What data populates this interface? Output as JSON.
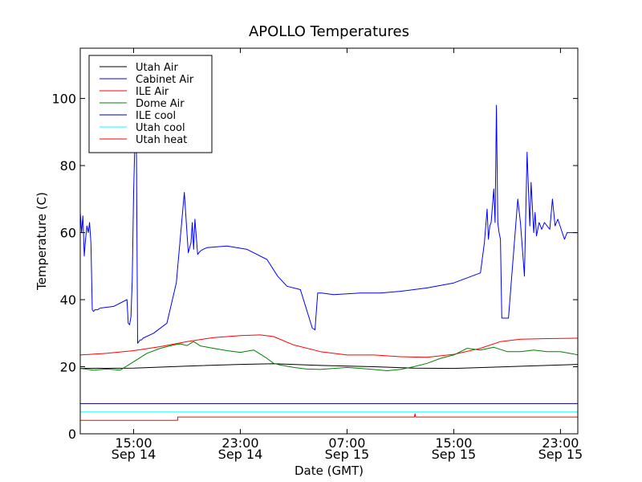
{
  "chart_data": {
    "type": "line",
    "title": "APOLLO Temperatures",
    "xlabel": "Date (GMT)",
    "ylabel": "Temperature (C)",
    "x_unit": "hours since Sep 14 11:00 GMT",
    "xlim": [
      0,
      37.3
    ],
    "ylim": [
      0,
      115
    ],
    "y_ticks": [
      0,
      20,
      40,
      60,
      80,
      100
    ],
    "x_ticks": [
      {
        "x": 4,
        "time": "15:00",
        "date": "Sep 14"
      },
      {
        "x": 12,
        "time": "23:00",
        "date": "Sep 14"
      },
      {
        "x": 20,
        "time": "07:00",
        "date": "Sep 15"
      },
      {
        "x": 28,
        "time": "15:00",
        "date": "Sep 15"
      },
      {
        "x": 36,
        "time": "23:00",
        "date": "Sep 15"
      }
    ],
    "legend_position": "top-left",
    "series": [
      {
        "name": "Utah Air",
        "color": "#000000",
        "x": [
          0,
          4,
          8,
          12,
          14.5,
          18,
          22,
          25,
          28,
          32,
          37.3
        ],
        "y": [
          19.5,
          19.6,
          20.2,
          20.7,
          20.9,
          20.4,
          20.0,
          19.6,
          19.5,
          20.0,
          20.7
        ]
      },
      {
        "name": "Cabinet Air",
        "color": "#0000ff",
        "x": [
          0,
          0.1,
          0.2,
          0.3,
          0.4,
          0.5,
          0.6,
          0.7,
          0.8,
          0.9,
          1.0,
          1.1,
          1.3,
          1.5,
          2.5,
          3.5,
          3.6,
          3.7,
          3.8,
          3.9,
          4.0,
          4.1,
          4.2,
          4.3,
          4.4,
          4.5,
          4.6,
          4.7,
          5.5,
          6.5,
          7.2,
          7.8,
          8.1,
          8.3,
          8.4,
          8.5,
          8.6,
          8.8,
          8.9,
          9.0,
          9.2,
          9.5,
          11,
          12.5,
          14,
          14.8,
          15.5,
          16.5,
          17.4,
          17.6,
          17.8,
          18.0,
          18.1,
          19,
          21,
          22.5,
          24,
          26,
          28,
          30,
          30.3,
          30.5,
          30.6,
          30.7,
          30.8,
          31.0,
          31.1,
          31.2,
          31.3,
          31.4,
          31.5,
          31.6,
          31.7,
          31.8,
          31.9,
          32.0,
          32.1,
          32.8,
          33.0,
          33.3,
          33.5,
          33.7,
          33.8,
          34.0,
          34.1,
          34.2,
          34.4,
          34.6,
          34.8,
          35.2,
          35.4,
          35.6,
          35.8,
          36.3,
          36.5,
          36.7,
          37.0,
          37.3
        ],
        "y": [
          66,
          60,
          65,
          53,
          58,
          62,
          60,
          63,
          57,
          37,
          36.5,
          37,
          37,
          37.5,
          38,
          40,
          33,
          32.5,
          35,
          46,
          72,
          88,
          92,
          27,
          27.5,
          28,
          28,
          28.5,
          30,
          33,
          45,
          72,
          54,
          57,
          63,
          55,
          64,
          53.5,
          54,
          54.5,
          55,
          55.5,
          56,
          55,
          52,
          47,
          44,
          43,
          31.5,
          31,
          42,
          42,
          42,
          41.5,
          42,
          42,
          42.5,
          43.5,
          45,
          48,
          57,
          67,
          58,
          62,
          63,
          73,
          63,
          98,
          63,
          60,
          58,
          34.5,
          34.5,
          34.5,
          34.5,
          34.5,
          34.5,
          70,
          63,
          47,
          84,
          62,
          75,
          60,
          66,
          59,
          63,
          61,
          63,
          61,
          70,
          62,
          64,
          58,
          60,
          60,
          60,
          60
        ]
      },
      {
        "name": "ILE Air",
        "color": "#ff0000",
        "x": [
          0,
          2,
          4,
          6,
          8,
          10,
          12,
          13.5,
          14.5,
          16,
          18,
          20,
          22,
          24,
          26,
          28,
          30,
          31.5,
          33,
          35,
          37.3
        ],
        "y": [
          23.5,
          24,
          24.8,
          26,
          27.5,
          28.7,
          29.3,
          29.5,
          29,
          26.5,
          24.5,
          23.5,
          23.5,
          23,
          22.8,
          23.7,
          25.5,
          27.5,
          28.2,
          28.4,
          28.5
        ]
      },
      {
        "name": "Dome Air",
        "color": "#008000",
        "x": [
          0,
          1,
          2,
          3,
          4,
          5,
          6,
          7,
          7.5,
          8,
          8.5,
          9,
          10,
          11,
          12,
          13,
          14,
          14.5,
          15,
          16,
          17,
          18,
          19,
          20,
          21,
          22,
          23,
          24,
          25,
          26,
          27,
          28,
          29,
          30,
          31,
          32,
          33,
          34,
          35,
          36,
          37,
          37.3
        ],
        "y": [
          19.5,
          19,
          19.3,
          19,
          21.5,
          24,
          25.5,
          26.5,
          26.8,
          26.3,
          27.5,
          26.2,
          25.5,
          24.8,
          24.3,
          25,
          22.5,
          21,
          20.5,
          19.8,
          19.3,
          19.2,
          19.5,
          19.8,
          19.5,
          19.2,
          18.8,
          19.2,
          20,
          21,
          22.5,
          23.5,
          25.5,
          25,
          25.8,
          24.5,
          24.5,
          25,
          24.5,
          24.5,
          23.8,
          23.5
        ]
      },
      {
        "name": "ILE cool",
        "color": "#000080",
        "x": [
          0,
          37.3
        ],
        "y": [
          9,
          9
        ]
      },
      {
        "name": "Utah cool",
        "color": "#00ffff",
        "x": [
          0,
          37.3
        ],
        "y": [
          6.5,
          6.5
        ]
      },
      {
        "name": "Utah heat",
        "color": "#ff0000",
        "x": [
          0,
          7.3,
          7.31,
          25.05,
          25.1,
          25.15,
          25.2,
          37.3
        ],
        "y": [
          4,
          4,
          5,
          5,
          6,
          5,
          5,
          5
        ]
      }
    ]
  }
}
